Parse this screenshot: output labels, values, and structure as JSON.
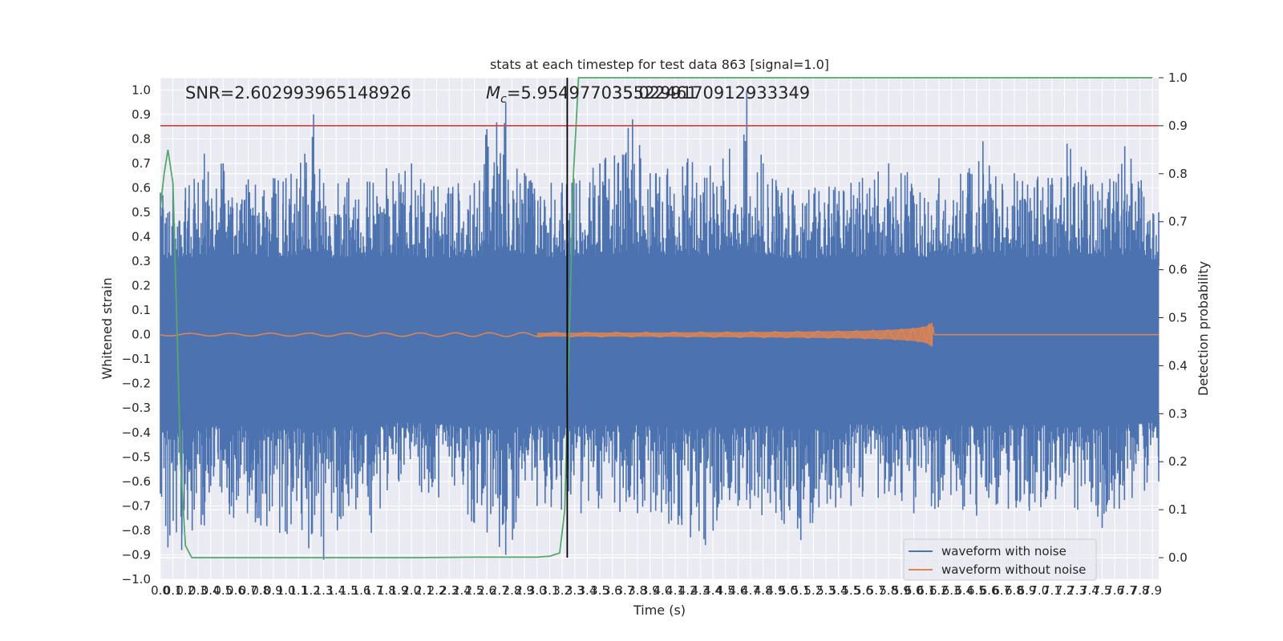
{
  "chart_data": {
    "type": "line",
    "title": "stats at each timestep for test data 863 [signal=1.0]",
    "xlabel": "Time (s)",
    "ylabel": "Whitened strain",
    "y2label": "Detection probability",
    "xlim": [
      0.0,
      7.95
    ],
    "ylim": [
      -1.0,
      1.05
    ],
    "y2lim": [
      -0.045,
      1.0
    ],
    "grid": true,
    "legend_position": "lower-right",
    "x_ticks": [
      "0.0",
      "0.1",
      "0.2",
      "0.3",
      "0.4",
      "0.5",
      "0.6",
      "0.7",
      "0.8",
      "0.9",
      "1.0",
      "1.1",
      "1.2",
      "1.3",
      "1.4",
      "1.5",
      "1.6",
      "1.7",
      "1.8",
      "1.9",
      "2.0",
      "2.1",
      "2.2",
      "2.3",
      "2.4",
      "2.5",
      "2.6",
      "2.7",
      "2.8",
      "2.9",
      "3.0",
      "3.1",
      "3.2",
      "3.3",
      "3.4",
      "3.5",
      "3.6",
      "3.7",
      "3.8",
      "3.9",
      "4.0",
      "4.1",
      "4.2",
      "4.3",
      "4.4",
      "4.5",
      "4.6",
      "4.7",
      "4.8",
      "4.9",
      "5.0",
      "5.1",
      "5.2",
      "5.3",
      "5.4",
      "5.5",
      "5.6",
      "5.7",
      "5.8",
      "5.9",
      "6.0",
      "6.1",
      "6.2",
      "6.3",
      "6.4",
      "6.5",
      "6.6",
      "6.7",
      "6.8",
      "6.9",
      "7.0",
      "7.1",
      "7.2",
      "7.3",
      "7.4",
      "7.5",
      "7.6",
      "7.7",
      "7.8",
      "7.9"
    ],
    "y_ticks": [
      "−1.0",
      "−0.9",
      "−0.8",
      "−0.7",
      "−0.6",
      "−0.5",
      "−0.4",
      "−0.3",
      "−0.2",
      "−0.1",
      "0.0",
      "0.1",
      "0.2",
      "0.3",
      "0.4",
      "0.5",
      "0.6",
      "0.7",
      "0.8",
      "0.9",
      "1.0"
    ],
    "y2_ticks": [
      "0.0",
      "0.1",
      "0.2",
      "0.3",
      "0.4",
      "0.5",
      "0.6",
      "0.7",
      "0.8",
      "0.9",
      "1.0"
    ],
    "annotations": {
      "snr": "SNR=2.602993965148926",
      "mc_symbol": "M",
      "mc_subscript": "c",
      "mc_value": "=5.954977035522461",
      "mc_overlap": "35.0299170912933349"
    },
    "series": [
      {
        "name": "waveform with noise",
        "color": "#4c72b0",
        "axis": "left",
        "envelope_upper": [
          [
            0.0,
            0.58
          ],
          [
            0.1,
            0.62
          ],
          [
            0.2,
            0.6
          ],
          [
            0.35,
            0.74
          ],
          [
            0.5,
            0.7
          ],
          [
            0.9,
            0.64
          ],
          [
            1.0,
            0.64
          ],
          [
            1.15,
            0.74
          ],
          [
            1.22,
            0.9
          ],
          [
            1.3,
            0.62
          ],
          [
            1.5,
            0.64
          ],
          [
            1.8,
            0.68
          ],
          [
            1.9,
            0.66
          ],
          [
            2.0,
            0.7
          ],
          [
            2.1,
            0.62
          ],
          [
            2.5,
            0.62
          ],
          [
            2.6,
            0.84
          ],
          [
            2.75,
            0.95
          ],
          [
            2.9,
            0.66
          ],
          [
            3.2,
            0.62
          ],
          [
            3.5,
            0.7
          ],
          [
            3.76,
            0.88
          ],
          [
            3.9,
            0.66
          ],
          [
            4.2,
            0.72
          ],
          [
            4.48,
            0.72
          ],
          [
            4.67,
            1.0
          ],
          [
            4.8,
            0.7
          ],
          [
            5.0,
            0.6
          ],
          [
            5.5,
            0.62
          ],
          [
            5.8,
            0.7
          ],
          [
            6.2,
            0.64
          ],
          [
            6.55,
            0.79
          ],
          [
            6.8,
            0.66
          ],
          [
            7.1,
            0.64
          ],
          [
            7.22,
            0.78
          ],
          [
            7.5,
            0.62
          ],
          [
            7.68,
            0.77
          ],
          [
            7.95,
            0.5
          ]
        ],
        "envelope_lower": [
          [
            0.0,
            -0.65
          ],
          [
            0.06,
            -0.87
          ],
          [
            0.17,
            -0.88
          ],
          [
            0.35,
            -0.78
          ],
          [
            0.8,
            -0.78
          ],
          [
            0.95,
            -0.81
          ],
          [
            1.3,
            -0.92
          ],
          [
            1.5,
            -0.7
          ],
          [
            1.68,
            -0.81
          ],
          [
            1.9,
            -0.6
          ],
          [
            2.5,
            -0.77
          ],
          [
            2.75,
            -0.9
          ],
          [
            3.0,
            -0.7
          ],
          [
            3.35,
            -0.73
          ],
          [
            3.8,
            -0.73
          ],
          [
            4.34,
            -0.86
          ],
          [
            4.6,
            -0.7
          ],
          [
            5.1,
            -0.84
          ],
          [
            5.5,
            -0.7
          ],
          [
            6.0,
            -0.73
          ],
          [
            6.5,
            -0.74
          ],
          [
            6.92,
            -0.72
          ],
          [
            7.5,
            -0.79
          ],
          [
            7.95,
            -0.6
          ]
        ],
        "core_band": [
          -0.33,
          0.28
        ]
      },
      {
        "name": "waveform without noise",
        "color": "#dd8452",
        "axis": "left",
        "chirp_amplitude": [
          [
            0.0,
            0.005
          ],
          [
            2.0,
            0.007
          ],
          [
            3.0,
            0.008
          ],
          [
            4.0,
            0.009
          ],
          [
            5.0,
            0.012
          ],
          [
            5.5,
            0.015
          ],
          [
            5.8,
            0.019
          ],
          [
            6.0,
            0.026
          ],
          [
            6.1,
            0.034
          ],
          [
            6.13,
            0.045
          ],
          [
            6.15,
            0.05
          ],
          [
            6.16,
            0.0
          ],
          [
            7.95,
            0.0
          ]
        ],
        "merger_time": 6.15
      },
      {
        "color": "#55a868",
        "axis": "right",
        "x": [
          0.0,
          0.03,
          0.06,
          0.1,
          0.13,
          0.16,
          0.2,
          0.25,
          0.5,
          1.0,
          1.5,
          2.0,
          2.5,
          3.0,
          3.1,
          3.18,
          3.22,
          3.24,
          3.26,
          3.29,
          3.33,
          3.5,
          4.0,
          5.0,
          6.0,
          7.0,
          7.9
        ],
        "values": [
          0.73,
          0.8,
          0.85,
          0.78,
          0.5,
          0.2,
          0.025,
          0.0,
          0.0,
          0.0,
          0.0,
          0.0,
          0.001,
          0.001,
          0.003,
          0.01,
          0.1,
          0.3,
          0.5,
          0.8,
          1.0,
          1.0,
          1.0,
          1.0,
          1.0,
          1.0,
          1.0
        ]
      }
    ],
    "reference_lines": [
      {
        "orientation": "horizontal",
        "axis": "right",
        "value": 0.9,
        "color": "#c44e52"
      },
      {
        "orientation": "vertical",
        "axis": "x",
        "value": 3.24,
        "color": "#000000",
        "ymin": 0.0,
        "ymax": 1.0
      }
    ]
  },
  "legend": {
    "items": [
      {
        "label": "waveform with noise",
        "color": "#4c72b0"
      },
      {
        "label": "waveform without noise",
        "color": "#dd8452"
      }
    ]
  }
}
